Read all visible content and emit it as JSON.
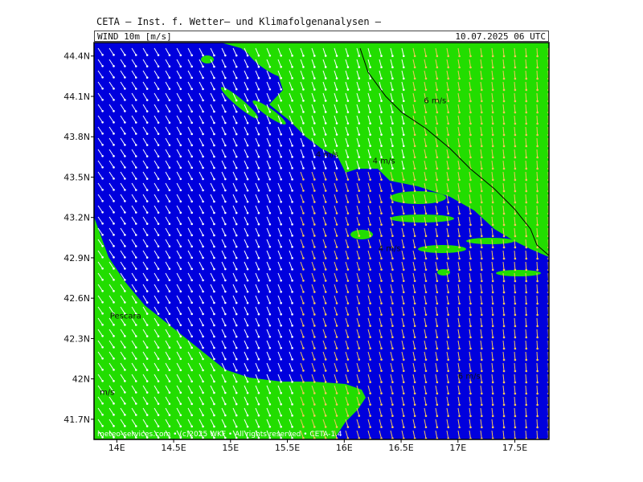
{
  "header": {
    "title": "CETA – Inst. f. Wetter– und Klimafolgenanalysen –",
    "variable": "WIND  10m  [m/s]",
    "datetime": "10.07.2025  06  UTC"
  },
  "map": {
    "lat_labels": [
      "44.4N",
      "44.1N",
      "43.8N",
      "43.5N",
      "43.2N",
      "42.9N",
      "42.6N",
      "42.3N",
      "42N",
      "41.7N"
    ],
    "lon_labels": [
      "14E",
      "14.5E",
      "15E",
      "15.5E",
      "16E",
      "16.5E",
      "17E",
      "17.5E"
    ],
    "lat_range": [
      41.55,
      44.5
    ],
    "lon_range": [
      13.8,
      17.8
    ],
    "colors": {
      "sea": "#0000dd",
      "land": "#22dd00",
      "arrows_fast": "#ffffff",
      "arrows_slow": "#f5c65a",
      "border": "#000000"
    },
    "speed_labels": [
      {
        "text": "6 m/s",
        "lon": 16.7,
        "lat": 44.05
      },
      {
        "text": "4 m/s",
        "lon": 16.25,
        "lat": 43.6
      },
      {
        "text": "4 m/s",
        "lon": 15.75,
        "lat": 43.65
      },
      {
        "text": "4 m/s",
        "lon": 16.3,
        "lat": 42.95
      },
      {
        "text": "6 m/s",
        "lon": 17.0,
        "lat": 42.0
      },
      {
        "text": "m/s",
        "lon": 13.85,
        "lat": 41.88
      }
    ],
    "place_labels": [
      {
        "text": "Pescara",
        "lon": 13.94,
        "lat": 42.45
      }
    ],
    "footer": "meteo-services.com • (c)2025 WKF • All rights reserved • CETA-1.4"
  }
}
